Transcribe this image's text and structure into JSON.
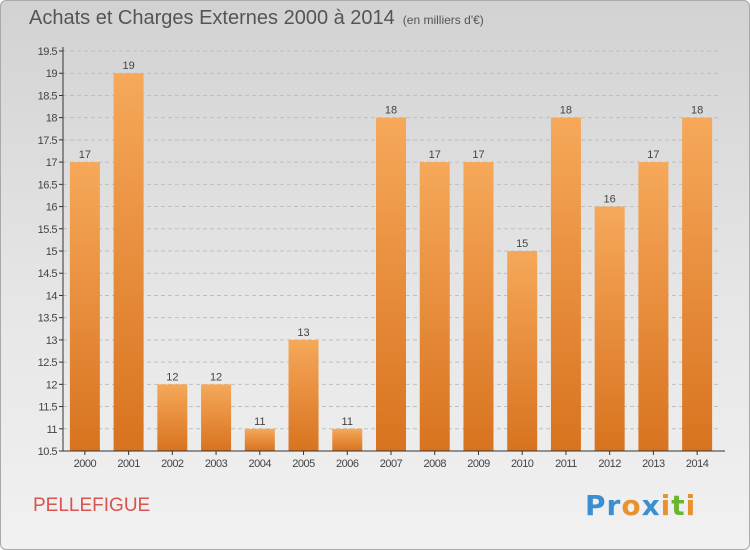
{
  "header": {
    "title": "Achats et Charges Externes 2000 à 2014",
    "unit": "(en milliers d'€)"
  },
  "footer": {
    "commune": "PELLEFIGUE",
    "logo_letters": [
      "P",
      "r",
      "o",
      "x",
      "i",
      "t",
      "i"
    ],
    "logo_colors": [
      "#3a8fd0",
      "#3a8fd0",
      "#e8912f",
      "#3a8fd0",
      "#e8912f",
      "#6ab633",
      "#e8912f"
    ]
  },
  "colors": {
    "bar_top": "#f6a85a",
    "bar_bottom": "#d8731f",
    "axis": "#333333",
    "grid": "#bfbfbf",
    "text": "#444444"
  },
  "chart_data": {
    "type": "bar",
    "title": "Achats et Charges Externes 2000 à 2014",
    "subtitle": "(en milliers d'€)",
    "categories": [
      "2000",
      "2001",
      "2002",
      "2003",
      "2004",
      "2005",
      "2006",
      "2007",
      "2008",
      "2009",
      "2010",
      "2011",
      "2012",
      "2013",
      "2014"
    ],
    "values": [
      17,
      19,
      12,
      12,
      11,
      13,
      11,
      18,
      17,
      17,
      15,
      18,
      16,
      17,
      18
    ],
    "ylim": [
      10.5,
      19.5
    ],
    "yticks": [
      "10.5",
      "11",
      "11.5",
      "12",
      "12.5",
      "13",
      "13.5",
      "14",
      "14.5",
      "15",
      "15.5",
      "16",
      "16.5",
      "17",
      "17.5",
      "18",
      "18.5",
      "19",
      "19.5"
    ],
    "grid": true,
    "xlabel": "",
    "ylabel": ""
  }
}
